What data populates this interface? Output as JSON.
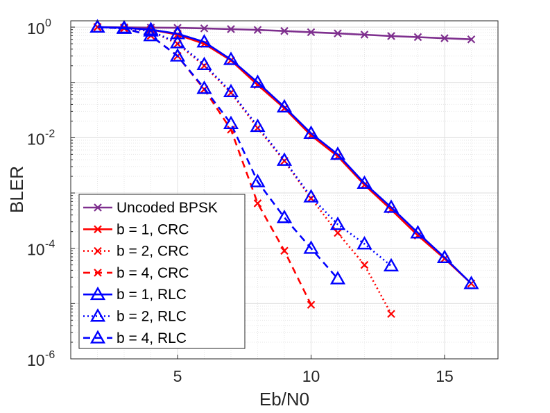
{
  "chart_data": {
    "type": "line",
    "title": "",
    "xlabel": "Eb/N0",
    "ylabel": "BLER",
    "xlim": [
      1,
      17
    ],
    "ylim": [
      1e-06,
      1.3
    ],
    "yscale": "log",
    "grid": true,
    "legend_position": "bottom-left",
    "xticks": [
      {
        "value": 5,
        "label": "5"
      },
      {
        "value": 10,
        "label": "10"
      },
      {
        "value": 15,
        "label": "15"
      }
    ],
    "yticks": [
      {
        "value": 1,
        "base": "10",
        "exp": "0"
      },
      {
        "value": 0.01,
        "base": "10",
        "exp": "-2"
      },
      {
        "value": 0.0001,
        "base": "10",
        "exp": "-4"
      },
      {
        "value": 1e-06,
        "base": "10",
        "exp": "-6"
      }
    ],
    "series": [
      {
        "name": "Uncoded BPSK",
        "color": "#7E2F8E",
        "dash": "solid",
        "marker": "x",
        "x": [
          2,
          3,
          4,
          5,
          6,
          7,
          8,
          9,
          10,
          11,
          12,
          13,
          14,
          15,
          16
        ],
        "y": [
          1.0,
          0.99,
          0.98,
          0.97,
          0.95,
          0.92,
          0.89,
          0.85,
          0.81,
          0.77,
          0.73,
          0.69,
          0.66,
          0.63,
          0.6
        ]
      },
      {
        "name": "b = 1, CRC",
        "color": "#FF0000",
        "dash": "solid",
        "marker": "x",
        "x": [
          2,
          3,
          4,
          5,
          6,
          7,
          8,
          9,
          10,
          11,
          12,
          13,
          14,
          15,
          16
        ],
        "y": [
          1.0,
          0.97,
          0.9,
          0.73,
          0.5,
          0.25,
          0.09,
          0.034,
          0.011,
          0.0046,
          0.0014,
          0.0005,
          0.00017,
          6.5e-05,
          2.3e-05
        ]
      },
      {
        "name": "b = 2, CRC",
        "color": "#FF0000",
        "dash": "dot",
        "marker": "x",
        "x": [
          2,
          3,
          4,
          5,
          6,
          7,
          8,
          9,
          10,
          11,
          12,
          13
        ],
        "y": [
          1.0,
          0.95,
          0.85,
          0.5,
          0.2,
          0.065,
          0.015,
          0.0038,
          0.0008,
          0.00019,
          5e-05,
          6.5e-06
        ]
      },
      {
        "name": "b = 4, CRC",
        "color": "#FF0000",
        "dash": "dash",
        "marker": "x",
        "x": [
          2,
          3,
          4,
          5,
          6,
          7,
          8,
          9,
          10
        ],
        "y": [
          1.0,
          0.95,
          0.7,
          0.3,
          0.075,
          0.014,
          0.00065,
          9e-05,
          9.5e-06
        ]
      },
      {
        "name": "b = 1, RLC",
        "color": "#0000FF",
        "dash": "solid",
        "marker": "triangle",
        "x": [
          2,
          3,
          4,
          5,
          6,
          7,
          8,
          9,
          10,
          11,
          12,
          13,
          14,
          15,
          16
        ],
        "y": [
          1.0,
          0.97,
          0.9,
          0.76,
          0.54,
          0.26,
          0.1,
          0.036,
          0.012,
          0.005,
          0.0015,
          0.00055,
          0.00019,
          6.8e-05,
          2.3e-05
        ]
      },
      {
        "name": "b = 2, RLC",
        "color": "#0000FF",
        "dash": "dot",
        "marker": "triangle",
        "x": [
          2,
          3,
          4,
          5,
          6,
          7,
          8,
          9,
          10,
          11,
          12,
          13
        ],
        "y": [
          1.0,
          0.95,
          0.85,
          0.52,
          0.21,
          0.068,
          0.016,
          0.0039,
          0.00085,
          0.00027,
          0.00012,
          4.8e-05
        ]
      },
      {
        "name": "b = 4, RLC",
        "color": "#0000FF",
        "dash": "dash",
        "marker": "triangle",
        "x": [
          2,
          3,
          4,
          5,
          6,
          7,
          8,
          9,
          10,
          11
        ],
        "y": [
          1.0,
          0.95,
          0.7,
          0.3,
          0.078,
          0.018,
          0.0016,
          0.00036,
          0.0001,
          2.8e-05
        ]
      }
    ]
  }
}
